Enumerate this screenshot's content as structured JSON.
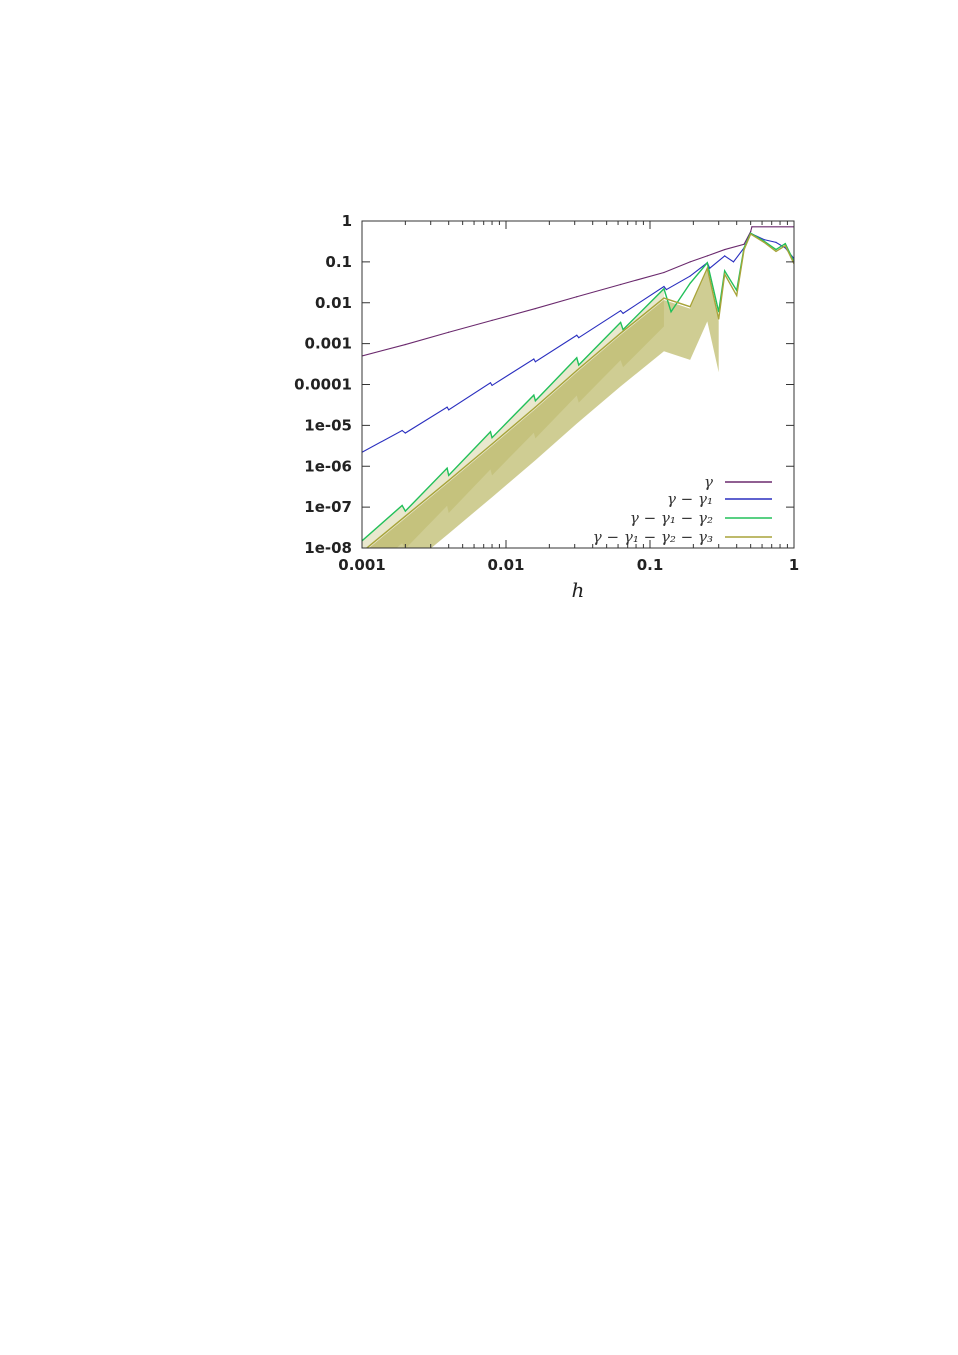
{
  "chart_data": {
    "type": "line",
    "title": "",
    "xlabel": "h",
    "ylabel": "",
    "xscale": "log",
    "yscale": "log",
    "xlim": [
      0.001,
      1
    ],
    "ylim": [
      1e-08,
      1
    ],
    "grid": false,
    "legend_position": "bottom-right",
    "x_ticks": [
      {
        "value": 0.001,
        "label": "0.001"
      },
      {
        "value": 0.01,
        "label": "0.01"
      },
      {
        "value": 0.1,
        "label": "0.1"
      },
      {
        "value": 1,
        "label": "1"
      }
    ],
    "y_ticks": [
      {
        "value": 1,
        "label": "1"
      },
      {
        "value": 0.1,
        "label": "0.1"
      },
      {
        "value": 0.01,
        "label": "0.01"
      },
      {
        "value": 0.001,
        "label": "0.001"
      },
      {
        "value": 0.0001,
        "label": "0.0001"
      },
      {
        "value": 1e-05,
        "label": "1e-05"
      },
      {
        "value": 1e-06,
        "label": "1e-06"
      },
      {
        "value": 1e-07,
        "label": "1e-07"
      },
      {
        "value": 1e-08,
        "label": "1e-08"
      }
    ],
    "series": [
      {
        "name": "γ",
        "color": "#6b2a6e",
        "x": [
          0.001,
          0.002,
          0.004,
          0.008,
          0.016,
          0.031,
          0.0625,
          0.125,
          0.19,
          0.25,
          0.33,
          0.45,
          0.5,
          0.51,
          1.0
        ],
        "y": [
          0.0005,
          0.00095,
          0.0019,
          0.0037,
          0.0072,
          0.014,
          0.028,
          0.055,
          0.1,
          0.14,
          0.2,
          0.27,
          0.55,
          0.72,
          0.72
        ]
      },
      {
        "name": "γ − γ₁",
        "color": "#2a2fbf",
        "x": [
          0.001,
          0.0019,
          0.002,
          0.0039,
          0.004,
          0.0078,
          0.008,
          0.0156,
          0.016,
          0.031,
          0.032,
          0.0625,
          0.065,
          0.125,
          0.13,
          0.19,
          0.25,
          0.26,
          0.33,
          0.38,
          0.45,
          0.5,
          0.62,
          0.75,
          0.87,
          1.0
        ],
        "y": [
          2.2e-06,
          7.5e-06,
          6.5e-06,
          2.8e-05,
          2.4e-05,
          0.00011,
          9.5e-05,
          0.00042,
          0.00036,
          0.0016,
          0.0014,
          0.0064,
          0.0055,
          0.025,
          0.021,
          0.045,
          0.095,
          0.07,
          0.14,
          0.1,
          0.22,
          0.5,
          0.35,
          0.3,
          0.22,
          0.12
        ]
      },
      {
        "name": "γ − γ₁ − γ₂",
        "color": "#22c05a",
        "x": [
          0.001,
          0.0019,
          0.002,
          0.0039,
          0.004,
          0.0078,
          0.008,
          0.0156,
          0.016,
          0.031,
          0.032,
          0.0625,
          0.065,
          0.125,
          0.14,
          0.19,
          0.25,
          0.3,
          0.33,
          0.4,
          0.45,
          0.5,
          0.62,
          0.75,
          0.87,
          1.0
        ],
        "y": [
          1.5e-08,
          1.1e-07,
          8e-08,
          9e-07,
          6e-07,
          7e-06,
          5e-06,
          5.5e-05,
          4e-05,
          0.00045,
          0.0003,
          0.0033,
          0.0022,
          0.022,
          0.006,
          0.03,
          0.095,
          0.006,
          0.06,
          0.02,
          0.22,
          0.5,
          0.32,
          0.2,
          0.28,
          0.1
        ]
      },
      {
        "name": "γ − γ₁ − γ₂ − γ₃",
        "color": "#a8a43a",
        "x": [
          0.001,
          0.002,
          0.004,
          0.008,
          0.016,
          0.031,
          0.0625,
          0.125,
          0.19,
          0.25,
          0.3,
          0.33,
          0.4,
          0.45,
          0.5,
          0.62,
          0.75,
          0.87,
          1.0
        ],
        "y": [
          8e-09,
          6e-08,
          4.5e-07,
          3.5e-06,
          2.8e-05,
          0.00022,
          0.0018,
          0.013,
          0.008,
          0.07,
          0.004,
          0.05,
          0.015,
          0.2,
          0.48,
          0.3,
          0.18,
          0.25,
          0.09
        ]
      }
    ]
  }
}
